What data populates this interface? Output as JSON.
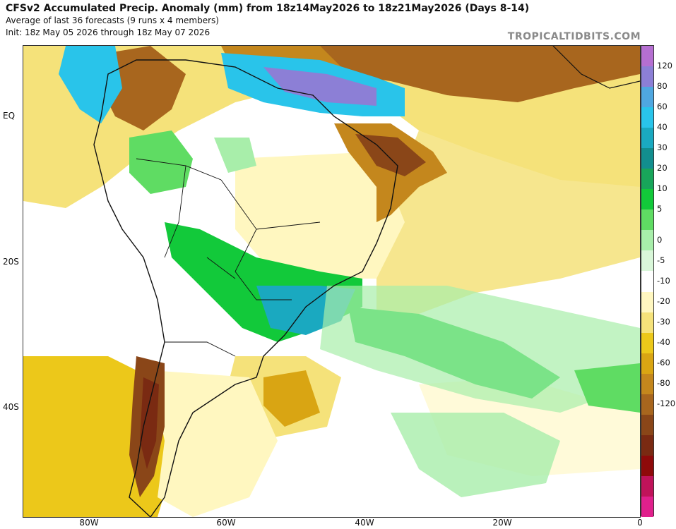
{
  "header": {
    "title": "CFSv2 Accumulated Precip. Anomaly (mm) from 18z14May2026 to 18z21May2026 (Days 8-14)",
    "subtitle": "Average of last 36 forecasts (9 runs x 4 members)",
    "init": "Init: 18z May 05 2026 through 18z May 07 2026",
    "brand": "TROPICALTIDBITS.COM"
  },
  "axes": {
    "lat_labels": [
      "EQ",
      "20S",
      "40S"
    ],
    "lon_labels": [
      "80W",
      "60W",
      "40W",
      "20W",
      "0"
    ]
  },
  "colorbar": {
    "labels": [
      "120",
      "80",
      "60",
      "40",
      "30",
      "20",
      "10",
      "5",
      "0",
      "-5",
      "-10",
      "-20",
      "-30",
      "-40",
      "-60",
      "-80",
      "-120"
    ],
    "colors": [
      "#b56fd1",
      "#8c7fd6",
      "#4fa7e0",
      "#29c4ea",
      "#1aa9c0",
      "#128e8e",
      "#18a55a",
      "#12c93a",
      "#5fdc63",
      "#a8eeaa",
      "#d9f7d9",
      "#ffffff",
      "#fff7c0",
      "#f5e27a",
      "#ecc81a",
      "#d9a513",
      "#c4871d",
      "#a8661e",
      "#8a4618",
      "#7a2a12",
      "#8e0a0a",
      "#c0135a",
      "#e0208c"
    ]
  }
}
